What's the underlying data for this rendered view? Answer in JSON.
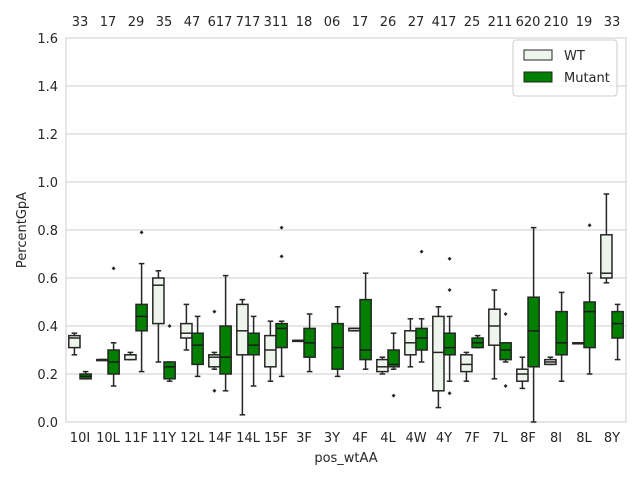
{
  "chart_data": {
    "type": "boxplot",
    "xlabel": "pos_wtAA",
    "ylabel": "PercentGpA",
    "ylim": [
      0.0,
      1.6
    ],
    "yticks": [
      "0.0",
      "0.2",
      "0.4",
      "0.6",
      "0.8",
      "1.0",
      "1.2",
      "1.4",
      "1.6"
    ],
    "grid": "horizontal",
    "legend_position": "top-right",
    "categories": [
      "10I",
      "10L",
      "11F",
      "11Y",
      "12L",
      "14F",
      "14L",
      "15F",
      "3F",
      "3Y",
      "4F",
      "4L",
      "4W",
      "4Y",
      "7F",
      "7L",
      "8F",
      "8I",
      "8L",
      "8Y"
    ],
    "top_labels": [
      "33",
      "17",
      "29",
      "35",
      "47",
      "617",
      "717",
      "311",
      "18",
      "06",
      "17",
      "26",
      "27",
      "417",
      "25",
      "211",
      "620",
      "210",
      "19",
      "33"
    ],
    "series": [
      {
        "name": "WT",
        "color": "#eef5ec",
        "boxes": [
          {
            "min": 0.28,
            "q1": 0.31,
            "median": 0.35,
            "q3": 0.36,
            "max": 0.37
          },
          {
            "min": 0.26,
            "q1": 0.26,
            "median": 0.26,
            "q3": 0.26,
            "max": 0.26
          },
          {
            "min": 0.26,
            "q1": 0.26,
            "median": 0.28,
            "q3": 0.28,
            "max": 0.29
          },
          {
            "min": 0.25,
            "q1": 0.41,
            "median": 0.57,
            "q3": 0.6,
            "max": 0.63
          },
          {
            "min": 0.3,
            "q1": 0.35,
            "median": 0.37,
            "q3": 0.41,
            "max": 0.49
          },
          {
            "min": 0.22,
            "q1": 0.23,
            "median": 0.27,
            "q3": 0.28,
            "max": 0.29
          },
          {
            "min": 0.03,
            "q1": 0.28,
            "median": 0.38,
            "q3": 0.49,
            "max": 0.51
          },
          {
            "min": 0.17,
            "q1": 0.23,
            "median": 0.3,
            "q3": 0.36,
            "max": 0.42
          },
          {
            "min": 0.34,
            "q1": 0.34,
            "median": 0.34,
            "q3": 0.34,
            "max": 0.34
          },
          null,
          {
            "min": 0.38,
            "q1": 0.38,
            "median": 0.39,
            "q3": 0.39,
            "max": 0.39
          },
          {
            "min": 0.2,
            "q1": 0.21,
            "median": 0.23,
            "q3": 0.26,
            "max": 0.27
          },
          {
            "min": 0.23,
            "q1": 0.28,
            "median": 0.33,
            "q3": 0.38,
            "max": 0.43
          },
          {
            "min": 0.06,
            "q1": 0.13,
            "median": 0.29,
            "q3": 0.44,
            "max": 0.48
          },
          {
            "min": 0.17,
            "q1": 0.21,
            "median": 0.24,
            "q3": 0.28,
            "max": 0.29
          },
          {
            "min": 0.18,
            "q1": 0.32,
            "median": 0.4,
            "q3": 0.47,
            "max": 0.55
          },
          {
            "min": 0.14,
            "q1": 0.17,
            "median": 0.2,
            "q3": 0.22,
            "max": 0.27
          },
          {
            "min": 0.24,
            "q1": 0.24,
            "median": 0.25,
            "q3": 0.26,
            "max": 0.27
          },
          {
            "min": 0.33,
            "q1": 0.33,
            "median": 0.33,
            "q3": 0.33,
            "max": 0.33
          },
          {
            "min": 0.58,
            "q1": 0.6,
            "median": 0.62,
            "q3": 0.78,
            "max": 0.95
          }
        ]
      },
      {
        "name": "Mutant",
        "color": "#007f00",
        "boxes": [
          {
            "min": 0.18,
            "q1": 0.18,
            "median": 0.19,
            "q3": 0.2,
            "max": 0.21
          },
          {
            "min": 0.15,
            "q1": 0.2,
            "median": 0.25,
            "q3": 0.3,
            "max": 0.33
          },
          {
            "min": 0.21,
            "q1": 0.38,
            "median": 0.44,
            "q3": 0.49,
            "max": 0.66
          },
          {
            "min": 0.17,
            "q1": 0.18,
            "median": 0.23,
            "q3": 0.25,
            "max": 0.25
          },
          {
            "min": 0.19,
            "q1": 0.24,
            "median": 0.32,
            "q3": 0.37,
            "max": 0.44
          },
          {
            "min": 0.13,
            "q1": 0.2,
            "median": 0.27,
            "q3": 0.4,
            "max": 0.61
          },
          {
            "min": 0.15,
            "q1": 0.28,
            "median": 0.32,
            "q3": 0.37,
            "max": 0.44
          },
          {
            "min": 0.19,
            "q1": 0.31,
            "median": 0.39,
            "q3": 0.41,
            "max": 0.42
          },
          {
            "min": 0.21,
            "q1": 0.27,
            "median": 0.33,
            "q3": 0.39,
            "max": 0.45
          },
          {
            "min": 0.19,
            "q1": 0.22,
            "median": 0.31,
            "q3": 0.41,
            "max": 0.48
          },
          {
            "min": 0.22,
            "q1": 0.26,
            "median": 0.3,
            "q3": 0.51,
            "max": 0.62
          },
          {
            "min": 0.22,
            "q1": 0.23,
            "median": 0.24,
            "q3": 0.3,
            "max": 0.37
          },
          {
            "min": 0.25,
            "q1": 0.3,
            "median": 0.35,
            "q3": 0.39,
            "max": 0.43
          },
          {
            "min": 0.17,
            "q1": 0.28,
            "median": 0.31,
            "q3": 0.37,
            "max": 0.44
          },
          {
            "min": 0.31,
            "q1": 0.31,
            "median": 0.33,
            "q3": 0.35,
            "max": 0.36
          },
          {
            "min": 0.25,
            "q1": 0.26,
            "median": 0.3,
            "q3": 0.33,
            "max": 0.33
          },
          {
            "min": 0.0,
            "q1": 0.23,
            "median": 0.38,
            "q3": 0.52,
            "max": 0.81
          },
          {
            "min": 0.17,
            "q1": 0.28,
            "median": 0.33,
            "q3": 0.46,
            "max": 0.54
          },
          {
            "min": 0.2,
            "q1": 0.31,
            "median": 0.46,
            "q3": 0.5,
            "max": 0.62
          },
          {
            "min": 0.26,
            "q1": 0.35,
            "median": 0.41,
            "q3": 0.46,
            "max": 0.49
          }
        ]
      }
    ],
    "outliers": [
      {
        "category": "10L",
        "series": "Mutant",
        "values": [
          0.64
        ]
      },
      {
        "category": "11F",
        "series": "Mutant",
        "values": [
          0.79
        ]
      },
      {
        "category": "11Y",
        "series": "Mutant",
        "values": [
          0.4
        ]
      },
      {
        "category": "14F",
        "series": "WT",
        "values": [
          0.46,
          0.13
        ]
      },
      {
        "category": "15F",
        "series": "Mutant",
        "values": [
          0.81,
          0.69
        ]
      },
      {
        "category": "4L",
        "series": "Mutant",
        "values": [
          0.11
        ]
      },
      {
        "category": "4W",
        "series": "Mutant",
        "values": [
          0.71
        ]
      },
      {
        "category": "4Y",
        "series": "Mutant",
        "values": [
          0.68,
          0.55,
          0.12
        ]
      },
      {
        "category": "7L",
        "series": "Mutant",
        "values": [
          0.45,
          0.15
        ]
      },
      {
        "category": "8L",
        "series": "Mutant",
        "values": [
          0.82
        ]
      }
    ]
  }
}
